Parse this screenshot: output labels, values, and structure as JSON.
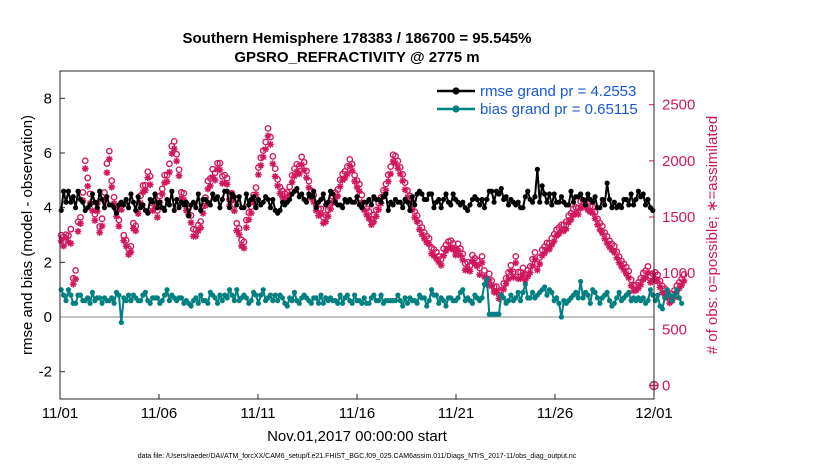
{
  "chart_data": {
    "type": "line",
    "title": "Southern Hemisphere 178383 / 186700 = 95.545%",
    "subtitle": "GPSRO_REFRACTIVITY @ 2775 m",
    "xlabel": "Nov.01,2017 00:00:00 start",
    "ylabel": "rmse and bias (model - observation)",
    "y2label": "# of obs: o=possible; ∗=assimilated",
    "footnote": "data file: /Users/raeder/DAI/ATM_forcXX/CAM6_setup/f.e21.FHIST_BGC.f09_025.CAM6assim.011/Diags_NTrS_2017-11/obs_diag_output.nc",
    "x_ticks": [
      "11/01",
      "11/06",
      "11/11",
      "11/16",
      "11/21",
      "11/26",
      "12/01"
    ],
    "x_range_days": [
      0,
      30
    ],
    "ylim": [
      -3,
      9
    ],
    "y_ticks": [
      "-2",
      "0",
      "2",
      "4",
      "6",
      "8"
    ],
    "y2lim": [
      -120,
      2800
    ],
    "y2_ticks": [
      "0",
      "500",
      "1000",
      "1500",
      "2000",
      "2500"
    ],
    "colors": {
      "rmse": "#000000",
      "bias": "#008080",
      "obs": "#d1175e",
      "legend_text": "#1a57d8"
    },
    "legend": [
      "rmse grand pr = 4.2553",
      "bias grand pr = 0.65115"
    ],
    "last_point_obs": 0,
    "series": [
      {
        "name": "rmse",
        "values": [
          3.9,
          4.6,
          4.2,
          4.6,
          4.2,
          4.4,
          4.0,
          4.6,
          4.3,
          4.2,
          3.9,
          4.0,
          4.1,
          4.5,
          4.2,
          4.0,
          4.6,
          4.3,
          4.0,
          4.4,
          4.1,
          4.1,
          4.0,
          3.8,
          4.1,
          4.2,
          4.1,
          4.3,
          4.0,
          4.5,
          4.2,
          3.9,
          4.4,
          4.0,
          4.1,
          3.9,
          3.8,
          4.3,
          4.2,
          4.5,
          4.0,
          4.2,
          4.0,
          3.9,
          4.3,
          4.1,
          4.6,
          3.9,
          4.3,
          4.0,
          4.2,
          4.1,
          4.2,
          3.7,
          4.1,
          4.2,
          4.0,
          4.5,
          3.9,
          4.3,
          4.3,
          4.2,
          4.1,
          4.5,
          4.3,
          4.4,
          4.0,
          4.3,
          4.6,
          4.6,
          4.0,
          4.5,
          4.4,
          4.1,
          4.4,
          4.0,
          4.0,
          4.5,
          4.1,
          4.3,
          4.4,
          4.0,
          4.3,
          4.1,
          4.2,
          4.4,
          4.3,
          4.0,
          4.3,
          3.9,
          3.8,
          3.9,
          4.2,
          4.1,
          4.2,
          4.3,
          4.5,
          4.6,
          4.7,
          4.4,
          4.5,
          4.3,
          4.2,
          4.5,
          4.4,
          4.6,
          4.0,
          4.2,
          4.3,
          4.5,
          4.1,
          4.2,
          4.6,
          4.5,
          4.2,
          4.1,
          4.1,
          4.0,
          4.3,
          4.2,
          4.3,
          4.2,
          4.2,
          4.4,
          4.1,
          4.0,
          4.2,
          4.2,
          4.3,
          4.1,
          4.4,
          4.3,
          4.3,
          4.2,
          4.4,
          4.5,
          3.9,
          4.2,
          4.1,
          4.3,
          4.2,
          4.2,
          4.0,
          4.3,
          4.2,
          3.9,
          4.4,
          4.1,
          4.5,
          4.6,
          4.5,
          4.3,
          4.3,
          4.5,
          4.5,
          4.0,
          4.2,
          4.3,
          4.0,
          4.3,
          4.5,
          4.2,
          4.1,
          4.5,
          4.3,
          4.2,
          4.1,
          4.2,
          4.0,
          3.9,
          4.1,
          4.3,
          4.4,
          4.3,
          4.1,
          4.3,
          4.0,
          4.3,
          4.6,
          4.6,
          4.2,
          4.6,
          4.5,
          4.7,
          4.3,
          4.4,
          4.1,
          4.3,
          4.2,
          4.1,
          4.2,
          4.0,
          4.0,
          4.4,
          4.6,
          4.3,
          4.2,
          4.4,
          5.4,
          4.2,
          4.8,
          4.5,
          4.2,
          4.5,
          4.1,
          4.5,
          4.2,
          4.2,
          4.4,
          4.2,
          4.1,
          4.1,
          4.6,
          4.2,
          4.4,
          4.4,
          4.5,
          4.3,
          4.1,
          4.5,
          4.3,
          4.2,
          4.4,
          4.0,
          4.0,
          4.3,
          4.1,
          4.9,
          4.3,
          4.0,
          4.2,
          4.0,
          4.1,
          4.0,
          4.3,
          4.3,
          4.1,
          4.5,
          4.1,
          4.3,
          4.6,
          4.4,
          4.5,
          4.1,
          4.3,
          4.0,
          3.9
        ]
      },
      {
        "name": "bias",
        "values": [
          1.0,
          0.8,
          0.6,
          1.0,
          0.8,
          0.5,
          0.5,
          0.8,
          0.8,
          0.6,
          0.6,
          0.7,
          0.5,
          0.9,
          0.6,
          0.7,
          0.7,
          0.5,
          0.7,
          0.6,
          0.6,
          0.7,
          0.5,
          0.9,
          0.8,
          -0.2,
          0.7,
          0.6,
          0.8,
          0.6,
          0.8,
          0.7,
          0.6,
          0.6,
          0.8,
          0.9,
          0.6,
          0.5,
          0.7,
          0.7,
          0.7,
          0.5,
          0.6,
          0.8,
          1.0,
          0.6,
          0.8,
          0.7,
          0.6,
          0.7,
          0.7,
          0.5,
          0.6,
          0.5,
          0.4,
          0.6,
          0.7,
          0.5,
          0.8,
          0.6,
          0.6,
          0.5,
          0.9,
          0.8,
          0.7,
          0.5,
          0.8,
          0.6,
          0.8,
          0.7,
          1.0,
          0.8,
          0.6,
          1.0,
          0.6,
          0.7,
          0.8,
          0.7,
          0.5,
          0.6,
          0.9,
          0.8,
          0.5,
          0.8,
          1.0,
          0.6,
          0.7,
          0.8,
          0.6,
          0.8,
          0.6,
          0.8,
          0.7,
          0.5,
          0.4,
          0.7,
          0.6,
          0.9,
          0.6,
          0.5,
          0.7,
          0.8,
          0.7,
          0.6,
          0.5,
          0.7,
          0.7,
          0.5,
          0.8,
          0.5,
          0.7,
          0.6,
          0.7,
          0.6,
          0.6,
          0.5,
          0.8,
          0.5,
          0.7,
          0.8,
          0.6,
          0.5,
          0.8,
          0.6,
          0.6,
          0.5,
          0.7,
          0.5,
          0.5,
          0.7,
          0.8,
          0.6,
          0.6,
          0.8,
          0.5,
          0.6,
          0.6,
          0.6,
          0.6,
          0.6,
          0.8,
          0.6,
          0.4,
          0.7,
          0.5,
          0.7,
          0.6,
          0.6,
          0.5,
          0.8,
          0.7,
          0.7,
          0.4,
          0.6,
          1.0,
          0.8,
          0.8,
          0.5,
          0.7,
          0.6,
          0.4,
          0.7,
          0.7,
          0.6,
          0.6,
          0.7,
          0.9,
          1.0,
          0.6,
          0.7,
          0.6,
          0.5,
          0.8,
          0.7,
          0.6,
          0.7,
          1.2,
          1.4,
          0.1,
          0.1,
          0.1,
          0.1,
          0.1,
          0.8,
          0.7,
          0.5,
          0.6,
          0.8,
          0.6,
          0.7,
          0.9,
          0.6,
          0.9,
          1.2,
          0.7,
          0.7,
          0.9,
          0.7,
          0.8,
          0.9,
          1.0,
          1.1,
          0.8,
          1.0,
          0.9,
          0.6,
          0.7,
          0.5,
          0.0,
          0.6,
          0.5,
          0.6,
          0.7,
          0.8,
          0.9,
          0.7,
          1.3,
          0.7,
          0.9,
          0.8,
          0.5,
          1.0,
          0.9,
          0.7,
          0.5,
          0.7,
          0.8,
          0.9,
          0.6,
          0.4,
          0.5,
          0.7,
          0.9,
          0.6,
          0.7,
          0.8,
          0.9,
          0.6,
          0.7,
          0.6,
          0.7,
          0.6,
          0.7,
          0.5,
          0.6,
          1.0,
          0.8,
          0.6,
          0.8,
          0.4,
          0.3,
          0.7,
          1.0,
          0.8,
          0.6,
          0.8,
          1.0,
          0.7,
          0.5
        ]
      },
      {
        "name": "obs_assimilated",
        "values": [
          1288,
          1242,
          1316,
          1277,
          1265,
          902,
          947,
          1372,
          1441,
          1647,
          1931,
          1774,
          1623,
          1557,
          1469,
          1552,
          1362,
          1420,
          1654,
          1895,
          2015,
          1766,
          1621,
          1506,
          1418,
          1565,
          1290,
          1241,
          1166,
          1188,
          1398,
          1377,
          1530,
          1624,
          1722,
          1737,
          1849,
          1788,
          1556,
          1581,
          1497,
          1630,
          1704,
          1805,
          1815,
          1900,
          2065,
          2108,
          1998,
          1867,
          1667,
          1652,
          1558,
          1519,
          1450,
          1329,
          1330,
          1377,
          1405,
          1533,
          1602,
          1749,
          1778,
          1855,
          1829,
          1924,
          1920,
          1800,
          1802,
          1792,
          1596,
          1648,
          1555,
          1379,
          1344,
          1242,
          1223,
          1406,
          1477,
          1535,
          1637,
          1701,
          1877,
          1959,
          2033,
          2104,
          2223,
          2147,
          1974,
          1862,
          1777,
          1711,
          1677,
          1647,
          1658,
          1702,
          1811,
          1864,
          1906,
          1884,
          1966,
          1917,
          1850,
          1762,
          1670,
          1635,
          1558,
          1513,
          1524,
          1445,
          1458,
          1506,
          1571,
          1628,
          1663,
          1686,
          1772,
          1829,
          1847,
          1884,
          1957,
          1912,
          1817,
          1766,
          1730,
          1631,
          1562,
          1520,
          1484,
          1431,
          1457,
          1506,
          1567,
          1622,
          1685,
          1737,
          1816,
          1884,
          1996,
          1978,
          1934,
          1884,
          1822,
          1744,
          1676,
          1632,
          1561,
          1496,
          1458,
          1389,
          1346,
          1308,
          1273,
          1258,
          1173,
          1154,
          1128,
          1099,
          1071,
          1155,
          1199,
          1221,
          1233,
          1211,
          1162,
          1204,
          1159,
          1117,
          1027,
          1043,
          1017,
          1106,
          1080,
          1063,
          986,
          1094,
          969,
          898,
          941,
          885,
          831,
          828,
          774,
          795,
          858,
          906,
          948,
          1017,
          963,
          1092,
          950,
          952,
          988,
          938,
          971,
          1005,
          1065,
          1123,
          1028,
          1082,
          1156,
          1179,
          1214,
          1213,
          1252,
          1286,
          1333,
          1351,
          1379,
          1377,
          1396,
          1450,
          1477,
          1517,
          1533,
          1524,
          1578,
          1591,
          1594,
          1562,
          1547,
          1534,
          1487,
          1431,
          1387,
          1356,
          1308,
          1268,
          1233,
          1207,
          1185,
          1138,
          1094,
          1057,
          1028,
          994,
          959,
          888,
          842,
          846,
          866,
          899,
          944,
          961,
          1003,
          918,
          937,
          950,
          925,
          875,
          828,
          806,
          781,
          735,
          755,
          787,
          837,
          866,
          894,
          931
        ]
      },
      {
        "name": "obs_possible",
        "values": [
          1339,
          1323,
          1343,
          1334,
          1392,
          955,
          1025,
          1458,
          1497,
          1719,
          2001,
          1848,
          1706,
          1635,
          1525,
          1625,
          1416,
          1485,
          1718,
          1976,
          2087,
          1823,
          1676,
          1561,
          1473,
          1622,
          1338,
          1293,
          1218,
          1240,
          1445,
          1421,
          1585,
          1689,
          1780,
          1783,
          1903,
          1863,
          1623,
          1640,
          1557,
          1687,
          1752,
          1873,
          1872,
          1974,
          2131,
          2173,
          2059,
          1921,
          1720,
          1712,
          1611,
          1578,
          1514,
          1392,
          1386,
          1428,
          1460,
          1598,
          1672,
          1820,
          1844,
          1926,
          1893,
          1979,
          1980,
          1862,
          1873,
          1845,
          1655,
          1712,
          1611,
          1444,
          1398,
          1296,
          1279,
          1472,
          1540,
          1592,
          1696,
          1762,
          1941,
          2027,
          2091,
          2168,
          2289,
          2212,
          2040,
          1931,
          1834,
          1766,
          1731,
          1707,
          1719,
          1768,
          1871,
          1931,
          1970,
          1953,
          2035,
          1987,
          1910,
          1820,
          1731,
          1696,
          1613,
          1570,
          1574,
          1498,
          1515,
          1564,
          1623,
          1683,
          1718,
          1744,
          1832,
          1884,
          1906,
          1950,
          2013,
          1970,
          1872,
          1824,
          1793,
          1695,
          1617,
          1575,
          1549,
          1481,
          1517,
          1562,
          1625,
          1675,
          1738,
          1794,
          1876,
          1949,
          2054,
          2043,
          1999,
          1942,
          1880,
          1806,
          1736,
          1687,
          1613,
          1548,
          1512,
          1445,
          1407,
          1361,
          1329,
          1310,
          1227,
          1212,
          1186,
          1149,
          1124,
          1219,
          1252,
          1281,
          1290,
          1265,
          1210,
          1262,
          1218,
          1172,
          1087,
          1097,
          1068,
          1161,
          1133,
          1113,
          1045,
          1150,
          1024,
          947,
          994,
          935,
          880,
          881,
          828,
          847,
          908,
          955,
          1007,
          1070,
          1012,
          1150,
          1009,
          1009,
          1047,
          990,
          1024,
          1060,
          1125,
          1184,
          1081,
          1140,
          1207,
          1235,
          1270,
          1267,
          1310,
          1346,
          1388,
          1406,
          1430,
          1431,
          1459,
          1511,
          1533,
          1573,
          1586,
          1579,
          1639,
          1648,
          1645,
          1621,
          1598,
          1594,
          1544,
          1484,
          1445,
          1418,
          1361,
          1326,
          1288,
          1260,
          1241,
          1192,
          1146,
          1108,
          1082,
          1053,
          1018,
          941,
          891,
          894,
          917,
          955,
          1002,
          1021,
          1060,
          973,
          995,
          1007,
          985,
          933,
          886,
          861,
          839,
          792,
          812,
          846,
          889,
          917,
          949,
          988
        ]
      }
    ]
  }
}
